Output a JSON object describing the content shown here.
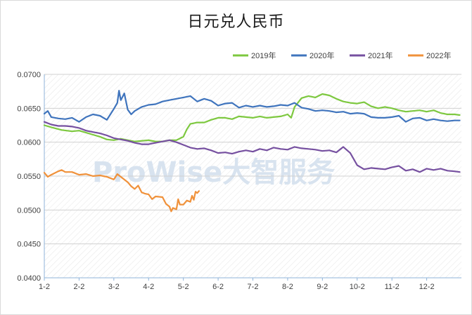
{
  "title": "日元兑人民币",
  "watermark": "ProWise大智服务",
  "chart_data": {
    "type": "line",
    "title": "日元兑人民币",
    "xlabel": "",
    "ylabel": "",
    "ylim": [
      0.04,
      0.07
    ],
    "yticks": [
      "0.0700",
      "0.0650",
      "0.0600",
      "0.0550",
      "0.0500",
      "0.0450",
      "0.0400"
    ],
    "xticks": [
      "1-2",
      "2-2",
      "3-2",
      "4-2",
      "5-2",
      "6-2",
      "7-2",
      "8-2",
      "9-2",
      "10-2",
      "11-2",
      "12-2"
    ],
    "legend_position": "top-right",
    "series": [
      {
        "name": "2019年",
        "color": "#7dc83f",
        "points": [
          [
            0.0,
            0.0625
          ],
          [
            0.2,
            0.0622
          ],
          [
            0.5,
            0.0618
          ],
          [
            0.8,
            0.0616
          ],
          [
            1.0,
            0.0617
          ],
          [
            1.2,
            0.0614
          ],
          [
            1.4,
            0.0611
          ],
          [
            1.6,
            0.0608
          ],
          [
            1.8,
            0.0604
          ],
          [
            2.0,
            0.0603
          ],
          [
            2.2,
            0.0605
          ],
          [
            2.4,
            0.0603
          ],
          [
            2.6,
            0.0601
          ],
          [
            2.8,
            0.0602
          ],
          [
            3.0,
            0.0603
          ],
          [
            3.2,
            0.0601
          ],
          [
            3.4,
            0.0601
          ],
          [
            3.6,
            0.0603
          ],
          [
            3.8,
            0.0603
          ],
          [
            4.0,
            0.0608
          ],
          [
            4.1,
            0.0619
          ],
          [
            4.2,
            0.0627
          ],
          [
            4.4,
            0.0629
          ],
          [
            4.6,
            0.0629
          ],
          [
            4.8,
            0.0633
          ],
          [
            5.0,
            0.0636
          ],
          [
            5.2,
            0.0636
          ],
          [
            5.4,
            0.0634
          ],
          [
            5.6,
            0.0638
          ],
          [
            5.8,
            0.0637
          ],
          [
            6.0,
            0.0636
          ],
          [
            6.2,
            0.0638
          ],
          [
            6.4,
            0.0636
          ],
          [
            6.6,
            0.0637
          ],
          [
            6.8,
            0.0638
          ],
          [
            7.0,
            0.0641
          ],
          [
            7.1,
            0.0636
          ],
          [
            7.2,
            0.0652
          ],
          [
            7.4,
            0.0665
          ],
          [
            7.6,
            0.0668
          ],
          [
            7.8,
            0.0666
          ],
          [
            8.0,
            0.0671
          ],
          [
            8.2,
            0.0669
          ],
          [
            8.4,
            0.0664
          ],
          [
            8.6,
            0.066
          ],
          [
            8.8,
            0.0658
          ],
          [
            9.0,
            0.0657
          ],
          [
            9.2,
            0.0659
          ],
          [
            9.4,
            0.0653
          ],
          [
            9.6,
            0.065
          ],
          [
            9.8,
            0.0652
          ],
          [
            10.0,
            0.065
          ],
          [
            10.2,
            0.0647
          ],
          [
            10.4,
            0.0645
          ],
          [
            10.6,
            0.0646
          ],
          [
            10.8,
            0.0647
          ],
          [
            11.0,
            0.0645
          ],
          [
            11.2,
            0.0647
          ],
          [
            11.4,
            0.0643
          ],
          [
            11.6,
            0.0641
          ],
          [
            11.8,
            0.0641
          ],
          [
            11.95,
            0.064
          ]
        ]
      },
      {
        "name": "2020年",
        "color": "#3f74bd",
        "points": [
          [
            0.0,
            0.0642
          ],
          [
            0.1,
            0.0646
          ],
          [
            0.2,
            0.0637
          ],
          [
            0.4,
            0.0635
          ],
          [
            0.6,
            0.0634
          ],
          [
            0.8,
            0.0636
          ],
          [
            1.0,
            0.063
          ],
          [
            1.2,
            0.0637
          ],
          [
            1.4,
            0.0641
          ],
          [
            1.6,
            0.0639
          ],
          [
            1.8,
            0.0633
          ],
          [
            1.9,
            0.0641
          ],
          [
            2.0,
            0.0649
          ],
          [
            2.1,
            0.0658
          ],
          [
            2.15,
            0.0676
          ],
          [
            2.2,
            0.0662
          ],
          [
            2.3,
            0.0672
          ],
          [
            2.4,
            0.0648
          ],
          [
            2.5,
            0.0641
          ],
          [
            2.6,
            0.0646
          ],
          [
            2.8,
            0.0652
          ],
          [
            3.0,
            0.0655
          ],
          [
            3.2,
            0.0656
          ],
          [
            3.4,
            0.066
          ],
          [
            3.6,
            0.0662
          ],
          [
            3.8,
            0.0664
          ],
          [
            4.0,
            0.0666
          ],
          [
            4.2,
            0.0668
          ],
          [
            4.4,
            0.066
          ],
          [
            4.6,
            0.0664
          ],
          [
            4.8,
            0.0661
          ],
          [
            5.0,
            0.0654
          ],
          [
            5.2,
            0.0657
          ],
          [
            5.4,
            0.0658
          ],
          [
            5.6,
            0.0651
          ],
          [
            5.8,
            0.0654
          ],
          [
            6.0,
            0.0652
          ],
          [
            6.2,
            0.0654
          ],
          [
            6.4,
            0.0652
          ],
          [
            6.6,
            0.0653
          ],
          [
            6.8,
            0.0655
          ],
          [
            7.0,
            0.0654
          ],
          [
            7.2,
            0.0658
          ],
          [
            7.4,
            0.0651
          ],
          [
            7.6,
            0.0649
          ],
          [
            7.8,
            0.0646
          ],
          [
            8.0,
            0.0647
          ],
          [
            8.2,
            0.0646
          ],
          [
            8.4,
            0.0644
          ],
          [
            8.6,
            0.0645
          ],
          [
            8.8,
            0.0642
          ],
          [
            9.0,
            0.0643
          ],
          [
            9.2,
            0.0642
          ],
          [
            9.4,
            0.0637
          ],
          [
            9.6,
            0.0636
          ],
          [
            9.8,
            0.0636
          ],
          [
            10.0,
            0.0637
          ],
          [
            10.2,
            0.0639
          ],
          [
            10.4,
            0.063
          ],
          [
            10.6,
            0.0635
          ],
          [
            10.8,
            0.0636
          ],
          [
            11.0,
            0.0632
          ],
          [
            11.2,
            0.0634
          ],
          [
            11.4,
            0.0632
          ],
          [
            11.6,
            0.0631
          ],
          [
            11.8,
            0.0632
          ],
          [
            11.95,
            0.0632
          ]
        ]
      },
      {
        "name": "2021年",
        "color": "#7650a0",
        "points": [
          [
            0.0,
            0.063
          ],
          [
            0.2,
            0.0626
          ],
          [
            0.4,
            0.0624
          ],
          [
            0.6,
            0.0624
          ],
          [
            0.8,
            0.0623
          ],
          [
            1.0,
            0.0621
          ],
          [
            1.2,
            0.0617
          ],
          [
            1.4,
            0.0615
          ],
          [
            1.6,
            0.0613
          ],
          [
            1.8,
            0.061
          ],
          [
            2.0,
            0.0606
          ],
          [
            2.2,
            0.0604
          ],
          [
            2.4,
            0.0602
          ],
          [
            2.6,
            0.0599
          ],
          [
            2.8,
            0.0597
          ],
          [
            3.0,
            0.0597
          ],
          [
            3.2,
            0.0599
          ],
          [
            3.4,
            0.0601
          ],
          [
            3.6,
            0.0603
          ],
          [
            3.8,
            0.06
          ],
          [
            4.0,
            0.0596
          ],
          [
            4.2,
            0.0592
          ],
          [
            4.4,
            0.059
          ],
          [
            4.6,
            0.0591
          ],
          [
            4.8,
            0.0588
          ],
          [
            5.0,
            0.0584
          ],
          [
            5.2,
            0.0585
          ],
          [
            5.4,
            0.0583
          ],
          [
            5.6,
            0.0586
          ],
          [
            5.8,
            0.0588
          ],
          [
            6.0,
            0.0586
          ],
          [
            6.2,
            0.059
          ],
          [
            6.4,
            0.0588
          ],
          [
            6.6,
            0.0592
          ],
          [
            6.8,
            0.059
          ],
          [
            7.0,
            0.0589
          ],
          [
            7.2,
            0.0593
          ],
          [
            7.4,
            0.0591
          ],
          [
            7.6,
            0.059
          ],
          [
            7.8,
            0.0589
          ],
          [
            8.0,
            0.0587
          ],
          [
            8.2,
            0.0588
          ],
          [
            8.4,
            0.0585
          ],
          [
            8.6,
            0.0593
          ],
          [
            8.8,
            0.0584
          ],
          [
            9.0,
            0.0566
          ],
          [
            9.2,
            0.056
          ],
          [
            9.4,
            0.0562
          ],
          [
            9.6,
            0.0561
          ],
          [
            9.8,
            0.056
          ],
          [
            10.0,
            0.0563
          ],
          [
            10.2,
            0.0565
          ],
          [
            10.4,
            0.0558
          ],
          [
            10.6,
            0.056
          ],
          [
            10.8,
            0.0556
          ],
          [
            11.0,
            0.0561
          ],
          [
            11.2,
            0.0559
          ],
          [
            11.4,
            0.0561
          ],
          [
            11.6,
            0.0558
          ],
          [
            11.8,
            0.0557
          ],
          [
            11.95,
            0.0556
          ]
        ]
      },
      {
        "name": "2022年",
        "color": "#f0913a",
        "points": [
          [
            0.0,
            0.0555
          ],
          [
            0.1,
            0.0549
          ],
          [
            0.2,
            0.0552
          ],
          [
            0.4,
            0.0557
          ],
          [
            0.5,
            0.0559
          ],
          [
            0.6,
            0.0556
          ],
          [
            0.8,
            0.0556
          ],
          [
            1.0,
            0.0552
          ],
          [
            1.2,
            0.0553
          ],
          [
            1.4,
            0.055
          ],
          [
            1.6,
            0.0551
          ],
          [
            1.8,
            0.0549
          ],
          [
            2.0,
            0.0545
          ],
          [
            2.1,
            0.0553
          ],
          [
            2.2,
            0.0549
          ],
          [
            2.4,
            0.0541
          ],
          [
            2.5,
            0.0535
          ],
          [
            2.6,
            0.0531
          ],
          [
            2.7,
            0.0536
          ],
          [
            2.8,
            0.0526
          ],
          [
            2.9,
            0.0524
          ],
          [
            3.0,
            0.0523
          ],
          [
            3.1,
            0.0516
          ],
          [
            3.2,
            0.052
          ],
          [
            3.4,
            0.0519
          ],
          [
            3.5,
            0.0509
          ],
          [
            3.6,
            0.0505
          ],
          [
            3.65,
            0.0498
          ],
          [
            3.7,
            0.0503
          ],
          [
            3.8,
            0.0501
          ],
          [
            3.85,
            0.0516
          ],
          [
            3.9,
            0.0508
          ],
          [
            4.0,
            0.0508
          ],
          [
            4.1,
            0.0514
          ],
          [
            4.2,
            0.0512
          ],
          [
            4.25,
            0.0521
          ],
          [
            4.3,
            0.0515
          ],
          [
            4.35,
            0.0527
          ],
          [
            4.4,
            0.0525
          ],
          [
            4.45,
            0.0528
          ]
        ]
      }
    ]
  }
}
